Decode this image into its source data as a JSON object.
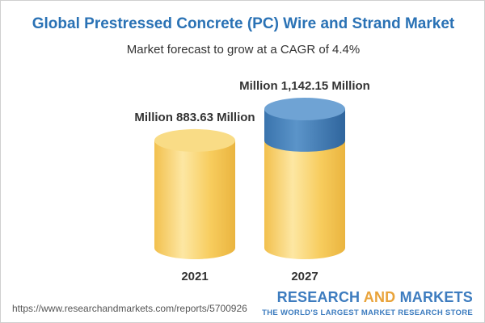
{
  "chart_data": {
    "type": "bar",
    "title": "Global Prestressed Concrete (PC) Wire and Strand Market",
    "subtitle": "Market forecast to grow at a CAGR of 4.4%",
    "categories": [
      "2021",
      "2027"
    ],
    "values": [
      883.63,
      1142.15
    ],
    "data_labels": [
      "Million 883.63 Million",
      "Million 1,142.15 Million"
    ],
    "unit": "Million",
    "cagr_percent": 4.4
  },
  "colors": {
    "title": "#2a72b5",
    "cylinder_base": "#f7cb5a",
    "cylinder_base_light": "#fde9a6",
    "cylinder_top": "#f9dc86",
    "cylinder_growth": "#3e7cb8",
    "cylinder_growth_top": "#6fa3d4"
  },
  "footer": {
    "url": "https://www.researchandmarkets.com/reports/5700926",
    "brand_part1": "RESEARCH ",
    "brand_part2": "AND",
    "brand_part3": " MARKETS",
    "tagline": "THE WORLD'S LARGEST MARKET RESEARCH STORE"
  }
}
